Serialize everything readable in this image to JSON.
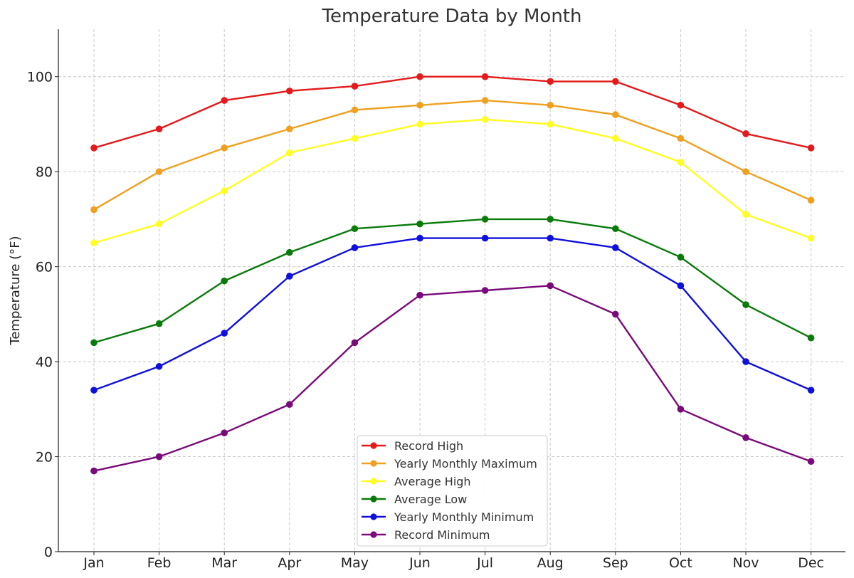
{
  "chart_data": {
    "type": "line",
    "title": "Temperature Data by Month",
    "xlabel": "",
    "ylabel": "Temperature (°F)",
    "categories": [
      "Jan",
      "Feb",
      "Mar",
      "Apr",
      "May",
      "Jun",
      "Jul",
      "Aug",
      "Sep",
      "Oct",
      "Nov",
      "Dec"
    ],
    "ylim": [
      0,
      110
    ],
    "yticks": [
      0,
      20,
      40,
      60,
      80,
      100
    ],
    "grid": true,
    "legend_position": "bottom-center",
    "series": [
      {
        "name": "Record High",
        "color": "#e41a1c",
        "values": [
          85,
          89,
          95,
          97,
          98,
          100,
          100,
          99,
          99,
          94,
          88,
          85
        ]
      },
      {
        "name": "Yearly Monthly Maximum",
        "color": "#f0a020",
        "values": [
          72,
          80,
          85,
          89,
          93,
          94,
          95,
          94,
          92,
          87,
          80,
          74
        ]
      },
      {
        "name": "Average High",
        "color": "#ffff22",
        "values": [
          65,
          69,
          76,
          84,
          87,
          90,
          91,
          90,
          87,
          82,
          71,
          66
        ]
      },
      {
        "name": "Average Low",
        "color": "#0a7a0a",
        "values": [
          44,
          48,
          57,
          63,
          68,
          69,
          70,
          70,
          68,
          62,
          52,
          45
        ]
      },
      {
        "name": "Yearly Monthly Minimum",
        "color": "#1010dd",
        "values": [
          34,
          39,
          46,
          58,
          64,
          66,
          66,
          66,
          64,
          56,
          40,
          34
        ]
      },
      {
        "name": "Record Minimum",
        "color": "#7a0a7a",
        "values": [
          17,
          20,
          25,
          31,
          44,
          54,
          55,
          56,
          50,
          30,
          24,
          19
        ]
      }
    ]
  }
}
